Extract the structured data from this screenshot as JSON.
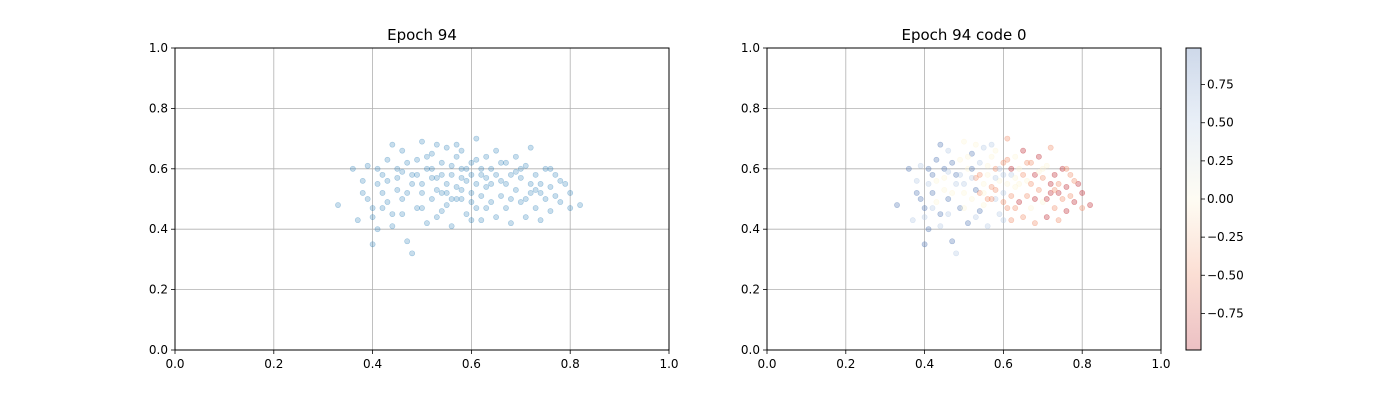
{
  "chart_data": [
    {
      "type": "scatter",
      "title": "Epoch 94",
      "xlabel": "",
      "ylabel": "",
      "xlim": [
        0,
        1
      ],
      "ylim": [
        0,
        1
      ],
      "xticks": [
        "0.0",
        "0.2",
        "0.4",
        "0.6",
        "0.8",
        "1.0"
      ],
      "yticks": [
        "0.0",
        "0.2",
        "0.4",
        "0.6",
        "0.8",
        "1.0"
      ],
      "grid": true,
      "color": "#1f77b4",
      "alpha": 0.25,
      "points": [
        [
          0.33,
          0.48
        ],
        [
          0.36,
          0.6
        ],
        [
          0.37,
          0.43
        ],
        [
          0.38,
          0.52
        ],
        [
          0.39,
          0.5
        ],
        [
          0.39,
          0.61
        ],
        [
          0.4,
          0.35
        ],
        [
          0.4,
          0.44
        ],
        [
          0.41,
          0.55
        ],
        [
          0.41,
          0.4
        ],
        [
          0.42,
          0.47
        ],
        [
          0.42,
          0.58
        ],
        [
          0.43,
          0.63
        ],
        [
          0.43,
          0.49
        ],
        [
          0.44,
          0.68
        ],
        [
          0.44,
          0.41
        ],
        [
          0.45,
          0.53
        ],
        [
          0.45,
          0.6
        ],
        [
          0.46,
          0.45
        ],
        [
          0.46,
          0.66
        ],
        [
          0.47,
          0.36
        ],
        [
          0.47,
          0.52
        ],
        [
          0.48,
          0.32
        ],
        [
          0.48,
          0.58
        ],
        [
          0.49,
          0.63
        ],
        [
          0.49,
          0.47
        ],
        [
          0.5,
          0.55
        ],
        [
          0.5,
          0.69
        ],
        [
          0.51,
          0.42
        ],
        [
          0.51,
          0.6
        ],
        [
          0.52,
          0.5
        ],
        [
          0.52,
          0.65
        ],
        [
          0.53,
          0.57
        ],
        [
          0.53,
          0.44
        ],
        [
          0.54,
          0.62
        ],
        [
          0.54,
          0.52
        ],
        [
          0.55,
          0.67
        ],
        [
          0.55,
          0.48
        ],
        [
          0.56,
          0.58
        ],
        [
          0.56,
          0.41
        ],
        [
          0.57,
          0.54
        ],
        [
          0.57,
          0.64
        ],
        [
          0.58,
          0.5
        ],
        [
          0.58,
          0.6
        ],
        [
          0.59,
          0.45
        ],
        [
          0.59,
          0.56
        ],
        [
          0.6,
          0.62
        ],
        [
          0.6,
          0.52
        ],
        [
          0.61,
          0.7
        ],
        [
          0.61,
          0.47
        ],
        [
          0.62,
          0.58
        ],
        [
          0.62,
          0.43
        ],
        [
          0.63,
          0.64
        ],
        [
          0.63,
          0.54
        ],
        [
          0.64,
          0.49
        ],
        [
          0.64,
          0.6
        ],
        [
          0.65,
          0.44
        ],
        [
          0.65,
          0.66
        ],
        [
          0.66,
          0.56
        ],
        [
          0.66,
          0.51
        ],
        [
          0.67,
          0.62
        ],
        [
          0.67,
          0.47
        ],
        [
          0.68,
          0.58
        ],
        [
          0.68,
          0.42
        ],
        [
          0.69,
          0.53
        ],
        [
          0.69,
          0.64
        ],
        [
          0.7,
          0.49
        ],
        [
          0.7,
          0.57
        ],
        [
          0.71,
          0.44
        ],
        [
          0.71,
          0.61
        ],
        [
          0.72,
          0.52
        ],
        [
          0.72,
          0.67
        ],
        [
          0.73,
          0.47
        ],
        [
          0.73,
          0.58
        ],
        [
          0.74,
          0.55
        ],
        [
          0.74,
          0.43
        ],
        [
          0.75,
          0.6
        ],
        [
          0.75,
          0.5
        ],
        [
          0.76,
          0.54
        ],
        [
          0.76,
          0.46
        ],
        [
          0.77,
          0.58
        ],
        [
          0.78,
          0.49
        ],
        [
          0.79,
          0.55
        ],
        [
          0.8,
          0.47
        ],
        [
          0.82,
          0.48
        ],
        [
          0.52,
          0.57
        ],
        [
          0.55,
          0.55
        ],
        [
          0.58,
          0.53
        ],
        [
          0.6,
          0.58
        ],
        [
          0.62,
          0.51
        ],
        [
          0.56,
          0.61
        ],
        [
          0.58,
          0.57
        ],
        [
          0.57,
          0.5
        ],
        [
          0.61,
          0.55
        ],
        [
          0.59,
          0.6
        ],
        [
          0.54,
          0.58
        ],
        [
          0.63,
          0.57
        ],
        [
          0.55,
          0.52
        ],
        [
          0.6,
          0.49
        ],
        [
          0.53,
          0.53
        ],
        [
          0.5,
          0.52
        ],
        [
          0.48,
          0.55
        ],
        [
          0.46,
          0.5
        ],
        [
          0.45,
          0.57
        ],
        [
          0.44,
          0.45
        ],
        [
          0.47,
          0.62
        ],
        [
          0.5,
          0.47
        ],
        [
          0.52,
          0.6
        ],
        [
          0.49,
          0.58
        ],
        [
          0.51,
          0.64
        ],
        [
          0.54,
          0.46
        ],
        [
          0.56,
          0.5
        ],
        [
          0.58,
          0.66
        ],
        [
          0.6,
          0.43
        ],
        [
          0.62,
          0.6
        ],
        [
          0.64,
          0.55
        ],
        [
          0.66,
          0.62
        ],
        [
          0.68,
          0.5
        ],
        [
          0.7,
          0.6
        ],
        [
          0.72,
          0.55
        ],
        [
          0.74,
          0.52
        ],
        [
          0.76,
          0.6
        ],
        [
          0.43,
          0.56
        ],
        [
          0.42,
          0.52
        ],
        [
          0.4,
          0.47
        ],
        [
          0.38,
          0.56
        ],
        [
          0.41,
          0.6
        ],
        [
          0.46,
          0.59
        ],
        [
          0.53,
          0.68
        ],
        [
          0.57,
          0.68
        ],
        [
          0.65,
          0.58
        ],
        [
          0.67,
          0.55
        ],
        [
          0.69,
          0.59
        ],
        [
          0.71,
          0.5
        ],
        [
          0.73,
          0.53
        ],
        [
          0.78,
          0.56
        ],
        [
          0.8,
          0.52
        ],
        [
          0.77,
          0.51
        ],
        [
          0.63,
          0.47
        ],
        [
          0.61,
          0.63
        ]
      ]
    },
    {
      "type": "scatter",
      "title": "Epoch 94 code 0",
      "xlabel": "",
      "ylabel": "",
      "xlim": [
        0,
        1
      ],
      "ylim": [
        0,
        1
      ],
      "xticks": [
        "0.0",
        "0.2",
        "0.4",
        "0.6",
        "0.8",
        "1.0"
      ],
      "yticks": [
        "0.0",
        "0.2",
        "0.4",
        "0.6",
        "0.8",
        "1.0"
      ],
      "grid": true,
      "colormap": "RdYlBu",
      "color_range": [
        -1,
        1
      ],
      "alpha": 0.3,
      "colorbar": {
        "ticks": [
          "0.75",
          "0.50",
          "0.25",
          "0.00",
          "−0.25",
          "−0.50",
          "−0.75"
        ],
        "tick_values": [
          0.75,
          0.5,
          0.25,
          0,
          -0.25,
          -0.5,
          -0.75
        ],
        "range": [
          -0.99,
          0.99
        ]
      },
      "colors": {
        "low": "#c0303a",
        "mid_low": "#f29370",
        "mid": "#fcf5d8",
        "mid_high": "#b7cce6",
        "high": "#5b7fb8"
      }
    }
  ]
}
